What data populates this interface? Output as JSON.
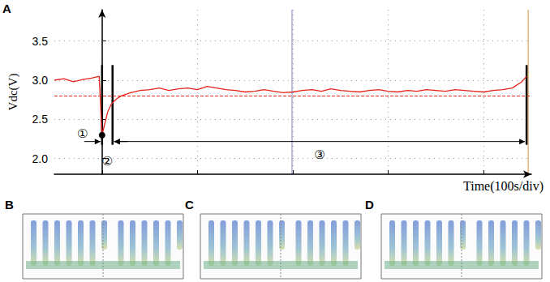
{
  "chart_data": {
    "type": "line",
    "ylabel": "Vdc(V)",
    "xlabel": "Time(100s/div)",
    "x": [
      -50,
      -40,
      -30,
      -20,
      -10,
      -3,
      0,
      3,
      6,
      10,
      15,
      20,
      30,
      40,
      50,
      60,
      70,
      80,
      90,
      100,
      110,
      120,
      130,
      140,
      150,
      160,
      170,
      180,
      190,
      200,
      210,
      220,
      230,
      240,
      250,
      260,
      270,
      280,
      290,
      300,
      310,
      320,
      330,
      340,
      350,
      360,
      370,
      380,
      390,
      400,
      410,
      420,
      430,
      440,
      445
    ],
    "values": [
      3.0,
      3.02,
      2.98,
      3.01,
      3.03,
      3.05,
      2.3,
      2.45,
      2.6,
      2.7,
      2.76,
      2.8,
      2.84,
      2.87,
      2.88,
      2.9,
      2.87,
      2.89,
      2.9,
      2.88,
      2.92,
      2.9,
      2.88,
      2.87,
      2.85,
      2.86,
      2.88,
      2.86,
      2.84,
      2.85,
      2.87,
      2.88,
      2.86,
      2.89,
      2.87,
      2.86,
      2.85,
      2.87,
      2.88,
      2.86,
      2.85,
      2.87,
      2.86,
      2.88,
      2.87,
      2.86,
      2.88,
      2.87,
      2.86,
      2.85,
      2.87,
      2.88,
      2.9,
      2.98,
      3.05
    ],
    "color": "#e8231c",
    "xlim": [
      -50,
      450
    ],
    "xticks": [
      0,
      100,
      200,
      300,
      400
    ],
    "ylim": [
      1.8,
      3.9
    ],
    "yticks": [
      2.0,
      2.5,
      3.0,
      3.5
    ],
    "grid": true,
    "tick_labels": "y",
    "reference_line": 2.8,
    "x_markers": [
      0,
      11,
      445
    ],
    "interval_labels": [
      "①",
      "②",
      "③"
    ]
  },
  "panel_labels": [
    "A",
    "B",
    "C",
    "D"
  ]
}
